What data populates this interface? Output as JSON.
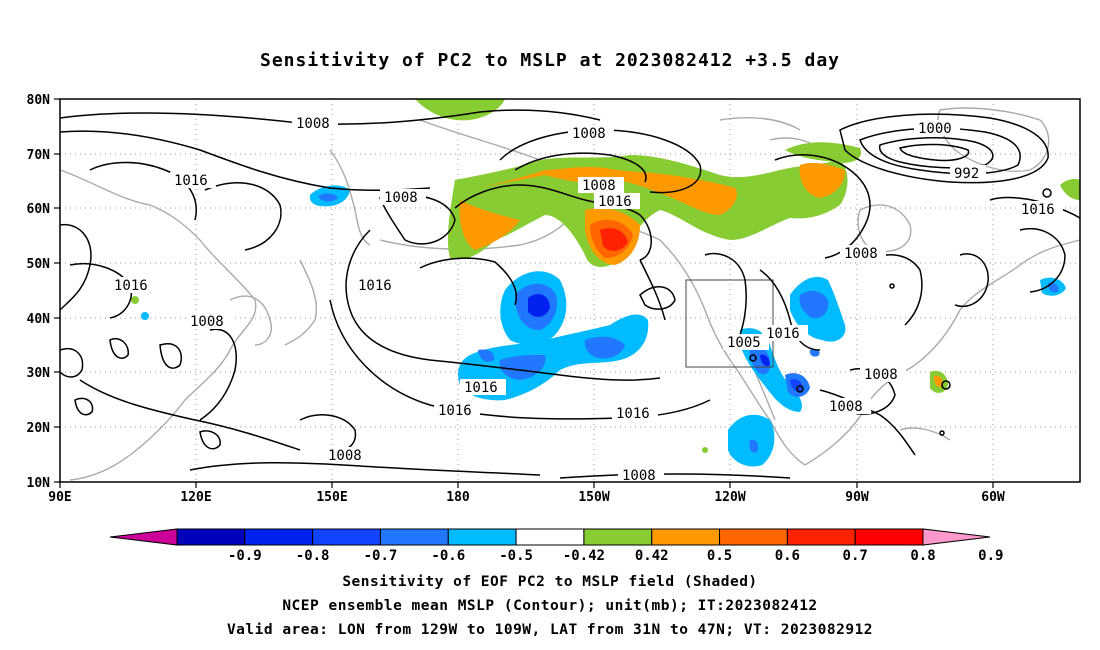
{
  "title": "Sensitivity of PC2 to MSLP at 2023082412 +3.5 day",
  "map": {
    "lat_labels": [
      "80N",
      "70N",
      "60N",
      "50N",
      "40N",
      "30N",
      "20N",
      "10N"
    ],
    "lon_labels": [
      "90E",
      "120E",
      "150E",
      "180",
      "150W",
      "120W",
      "90W",
      "60W"
    ],
    "contour_labels": [
      "1008",
      "1008",
      "1008",
      "1008",
      "1008",
      "1008",
      "1008",
      "1008",
      "1008",
      "1008",
      "1016",
      "1016",
      "1016",
      "1016",
      "1016",
      "1016",
      "1016",
      "1016",
      "1016",
      "1000",
      "992",
      "1005"
    ]
  },
  "colorbar": {
    "labels": [
      "-0.9",
      "-0.8",
      "-0.7",
      "-0.6",
      "-0.5",
      "-0.42",
      "0.42",
      "0.5",
      "0.6",
      "0.7",
      "0.8",
      "0.9"
    ],
    "colors": [
      "#cc0099",
      "#0000bb",
      "#0022ee",
      "#1144ff",
      "#2277ff",
      "#00bbff",
      "#ffffff",
      "#88cc33",
      "#ff9900",
      "#ff6600",
      "#ff2200",
      "#ff0000",
      "#ff99cc"
    ]
  },
  "captions": {
    "line1": "Sensitivity of EOF PC2 to MSLP field (Shaded)",
    "line2": "NCEP ensemble mean MSLP (Contour); unit(mb); IT:2023082412",
    "line3": "Valid area: LON from 129W to 109W, LAT from 31N to 47N; VT: 2023082912"
  }
}
